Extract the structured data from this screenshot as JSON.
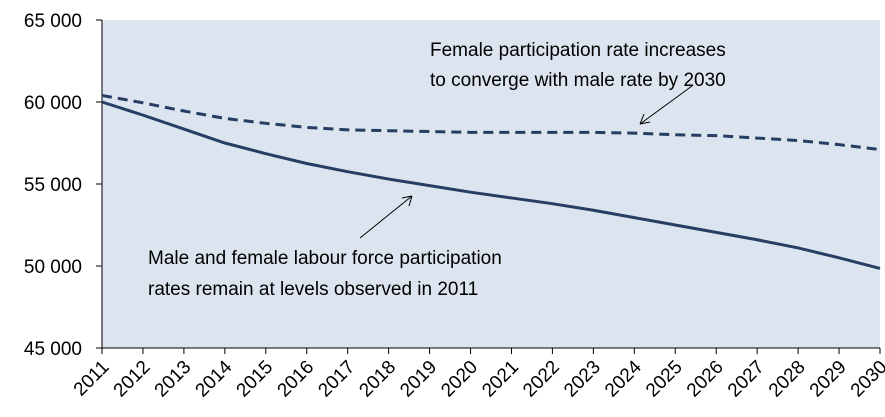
{
  "chart_data": {
    "type": "line",
    "categories": [
      "2011",
      "2012",
      "2013",
      "2014",
      "2015",
      "2016",
      "2017",
      "2018",
      "2019",
      "2020",
      "2021",
      "2022",
      "2023",
      "2024",
      "2025",
      "2026",
      "2027",
      "2028",
      "2029",
      "2030"
    ],
    "series": [
      {
        "color": "#263e63",
        "dash": false,
        "values": [
          60000,
          59200,
          58350,
          57500,
          56850,
          56250,
          55750,
          55300,
          54900,
          54500,
          54150,
          53800,
          53400,
          52950,
          52500,
          52050,
          51600,
          51100,
          50500,
          49850
        ]
      },
      {
        "color": "#263e63",
        "dash": true,
        "values": [
          60400,
          59950,
          59450,
          59000,
          58700,
          58450,
          58300,
          58250,
          58200,
          58150,
          58150,
          58150,
          58150,
          58100,
          58000,
          57950,
          57800,
          57650,
          57400,
          57100
        ]
      }
    ],
    "ylim": [
      45000,
      65000
    ],
    "yticks": [
      {
        "value": 45000,
        "label": "45 000"
      },
      {
        "value": 50000,
        "label": "50 000"
      },
      {
        "value": 55000,
        "label": "55 000"
      },
      {
        "value": 60000,
        "label": "60 000"
      },
      {
        "value": 65000,
        "label": "65 000"
      }
    ],
    "grid": false,
    "annotations": [
      {
        "lines": [
          "Female participation rate increases",
          "to converge with male rate by 2030"
        ]
      },
      {
        "lines": [
          "Male and female labour force participation",
          "rates remain at levels observed in 2011"
        ]
      }
    ]
  }
}
